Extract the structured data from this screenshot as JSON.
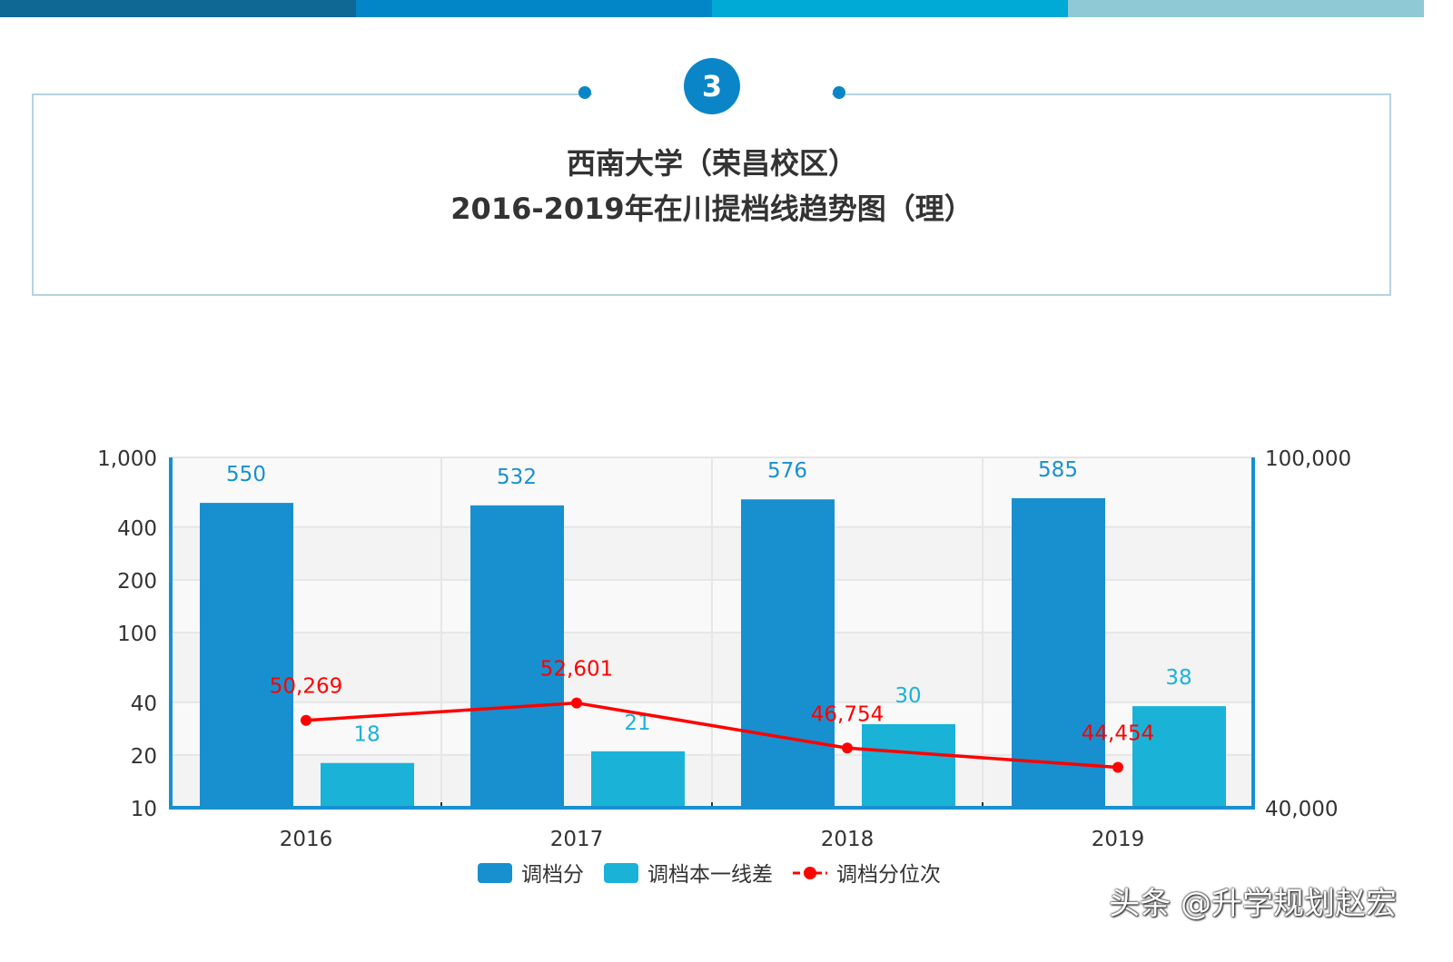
{
  "header": {
    "section_number": "3",
    "title_line1": "西南大学（荣昌校区）",
    "title_line2": "2016-2019年在川提档线趋势图（理）",
    "bar_colors": [
      "#0e6893",
      "#0286c8",
      "#00aad6",
      "#8fc9d6"
    ]
  },
  "watermark": "头条 @升学规划赵宏",
  "chart_data": {
    "type": "bar",
    "categories": [
      "2016",
      "2017",
      "2018",
      "2019"
    ],
    "left_axis": {
      "scale": "log",
      "range": [
        10,
        1000
      ],
      "ticks": [
        10,
        20,
        40,
        100,
        200,
        400,
        1000
      ],
      "tick_labels": [
        "10",
        "20",
        "40",
        "100",
        "200",
        "400",
        "1,000"
      ]
    },
    "right_axis": {
      "scale": "log",
      "range": [
        40000,
        100000
      ],
      "ticks": [
        40000,
        100000
      ],
      "tick_labels": [
        "40,000",
        "100,000"
      ]
    },
    "series": [
      {
        "name": "调档分",
        "type": "bar",
        "axis": "left",
        "color": "#1890cf",
        "values": [
          550,
          532,
          576,
          585
        ],
        "labels": [
          "550",
          "532",
          "576",
          "585"
        ]
      },
      {
        "name": "调档本一线差",
        "type": "bar",
        "axis": "left",
        "color": "#1bb2d8",
        "values": [
          18,
          21,
          30,
          38
        ],
        "labels": [
          "18",
          "21",
          "30",
          "38"
        ]
      },
      {
        "name": "调档分位次",
        "type": "line",
        "axis": "right",
        "color": "#ff0000",
        "values": [
          50269,
          52601,
          46754,
          44454
        ],
        "labels": [
          "50,269",
          "52,601",
          "46,754",
          "44,454"
        ]
      }
    ],
    "legend": "bottom",
    "grid": true
  }
}
